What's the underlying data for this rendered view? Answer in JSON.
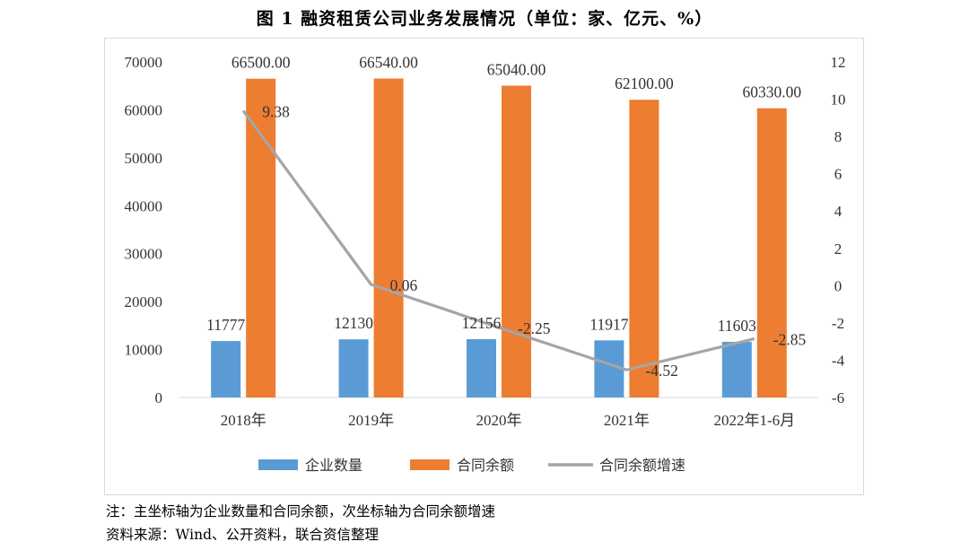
{
  "figure_title": "图 1   融资租赁公司业务发展情况（单位：家、亿元、%）",
  "note": "注：主坐标轴为企业数量和合同余额，次坐标轴为合同余额增速",
  "source": "资料来源：Wind、公开资料，联合资信整理",
  "colors": {
    "enterprise": "#5b9bd5",
    "contract": "#ed7d31",
    "growth": "#a5a5a5"
  },
  "chart_data": {
    "type": "bar",
    "categories": [
      "2018年",
      "2019年",
      "2020年",
      "2021年",
      "2022年1-6月"
    ],
    "series": [
      {
        "name": "企业数量",
        "axis": "primary",
        "type": "bar",
        "values": [
          11777,
          12130,
          12156,
          11917,
          11603
        ],
        "labels": [
          "11777",
          "12130",
          "12156",
          "11917",
          "11603"
        ]
      },
      {
        "name": "合同余额",
        "axis": "primary",
        "type": "bar",
        "values": [
          66500,
          66540,
          65040,
          62100,
          60330
        ],
        "labels": [
          "66500.00",
          "66540.00",
          "65040.00",
          "62100.00",
          "60330.00"
        ]
      },
      {
        "name": "合同余额增速",
        "axis": "secondary",
        "type": "line",
        "values": [
          9.38,
          0.06,
          -2.25,
          -4.52,
          -2.85
        ],
        "labels": [
          "9.38",
          "0.06",
          "-2.25",
          "-4.52",
          "-2.85"
        ]
      }
    ],
    "y_primary": {
      "min": 0,
      "max": 70000,
      "step": 10000,
      "ticks": [
        "0",
        "10000",
        "20000",
        "30000",
        "40000",
        "50000",
        "60000",
        "70000"
      ]
    },
    "y_secondary": {
      "min": -6,
      "max": 12,
      "step": 2,
      "ticks": [
        "-6",
        "-4",
        "-2",
        "0",
        "2",
        "4",
        "6",
        "8",
        "10",
        "12"
      ]
    },
    "legend_position": "bottom",
    "grid": false
  }
}
